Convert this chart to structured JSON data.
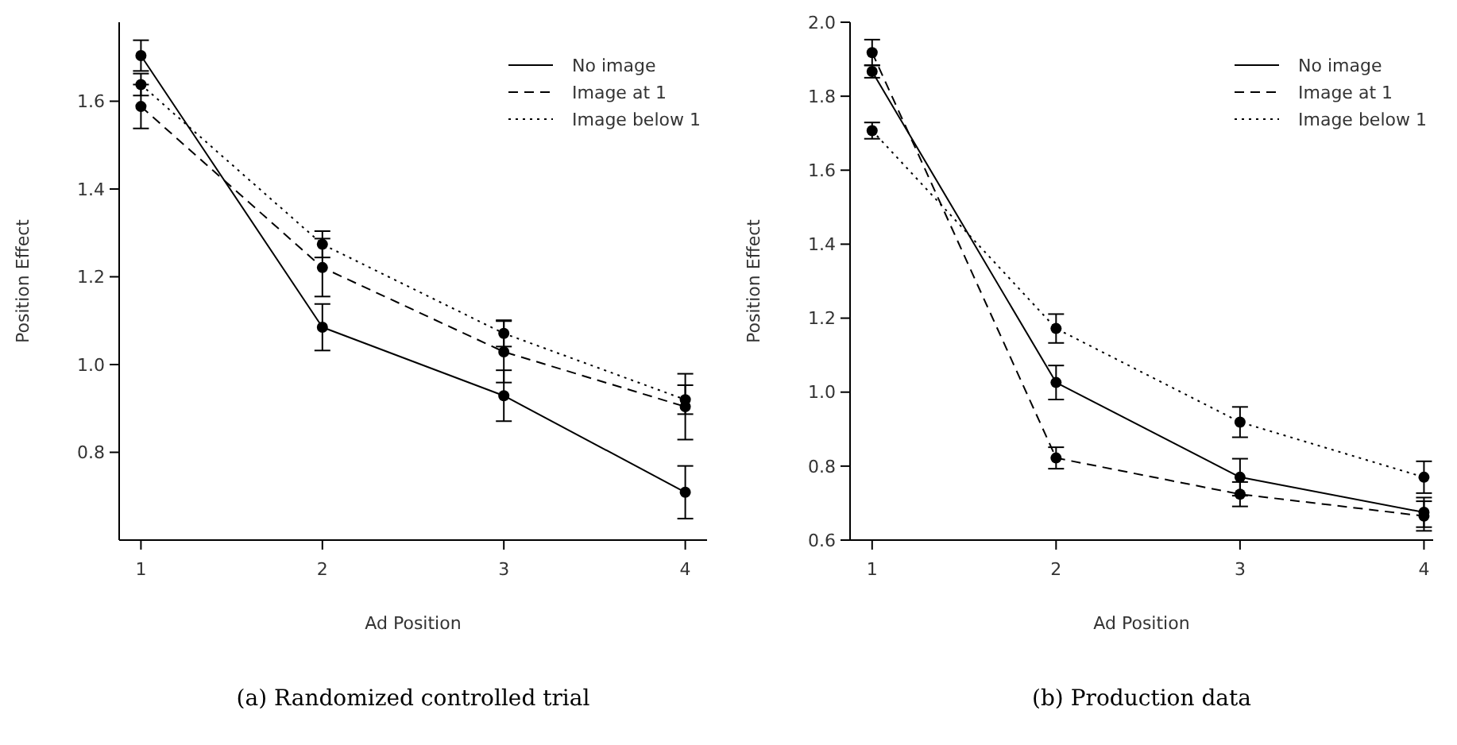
{
  "chart_data": [
    {
      "type": "line",
      "xlabel": "Ad Position",
      "ylabel": "Position Effect",
      "annotations": [
        "(a) Randomized controlled trial"
      ],
      "x": [
        1,
        2,
        3,
        4
      ],
      "xlim": [
        0.88,
        4.12
      ],
      "xticks": [
        1,
        2,
        3,
        4
      ],
      "ylim": [
        0.6,
        1.78
      ],
      "yticks": [
        {
          "value": 0.8,
          "label": "0.8"
        },
        {
          "value": 1.0,
          "label": "1.0"
        },
        {
          "value": 1.2,
          "label": "1.2"
        },
        {
          "value": 1.4,
          "label": "1.4"
        },
        {
          "value": 1.6,
          "label": "1.6"
        }
      ],
      "legend": "top right",
      "marker": "circle",
      "series": [
        {
          "name": "No image",
          "color": "#000000",
          "line_style": "solid",
          "values": [
            1.704,
            1.085,
            0.929,
            0.709
          ],
          "errors": [
            0.035,
            0.053,
            0.058,
            0.06
          ]
        },
        {
          "name": "Image at 1",
          "color": "#000000",
          "line_style": "dashed",
          "values": [
            1.588,
            1.221,
            1.029,
            0.904
          ],
          "errors": [
            0.05,
            0.066,
            0.07,
            0.075
          ]
        },
        {
          "name": "Image below 1",
          "color": "#000000",
          "line_style": "dotted",
          "values": [
            1.638,
            1.274,
            1.071,
            0.92
          ],
          "errors": [
            0.025,
            0.03,
            0.03,
            0.033
          ]
        }
      ]
    },
    {
      "type": "line",
      "xlabel": "Ad Position",
      "ylabel": "Position Effect",
      "annotations": [
        "(b) Production data"
      ],
      "x": [
        1,
        2,
        3,
        4
      ],
      "xlim": [
        0.88,
        4.05
      ],
      "xticks": [
        1,
        2,
        3,
        4
      ],
      "ylim": [
        0.6,
        2.0
      ],
      "yticks": [
        {
          "value": 0.6,
          "label": "0.6"
        },
        {
          "value": 0.8,
          "label": "0.8"
        },
        {
          "value": 1.0,
          "label": "1.0"
        },
        {
          "value": 1.2,
          "label": "1.2"
        },
        {
          "value": 1.4,
          "label": "1.4"
        },
        {
          "value": 1.6,
          "label": "1.6"
        },
        {
          "value": 1.8,
          "label": "1.8"
        },
        {
          "value": 2.0,
          "label": "2.0"
        }
      ],
      "legend": "top right",
      "marker": "circle",
      "series": [
        {
          "name": "No image",
          "color": "#000000",
          "line_style": "solid",
          "values": [
            1.867,
            1.026,
            0.77,
            0.675
          ],
          "errors": [
            0.017,
            0.046,
            0.05,
            0.04
          ]
        },
        {
          "name": "Image at 1",
          "color": "#000000",
          "line_style": "dashed",
          "values": [
            1.918,
            0.822,
            0.724,
            0.665
          ],
          "errors": [
            0.035,
            0.029,
            0.033,
            0.04
          ]
        },
        {
          "name": "Image below 1",
          "color": "#000000",
          "line_style": "dotted",
          "values": [
            1.707,
            1.172,
            0.919,
            0.77
          ],
          "errors": [
            0.022,
            0.039,
            0.041,
            0.043
          ]
        }
      ]
    }
  ]
}
